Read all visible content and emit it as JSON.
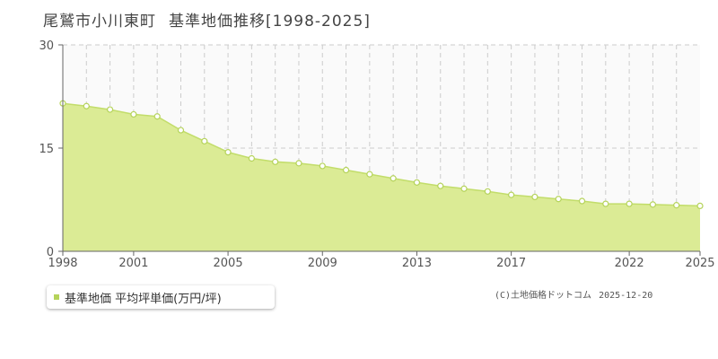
{
  "title": {
    "place": "尾鷲市小川東町",
    "label": "基準地価推移[1998-2025]"
  },
  "legend": {
    "label": "基準地価 平均坪単価(万円/坪)"
  },
  "credit": {
    "source": "(C)土地価格ドットコム",
    "date": "2025-12-20"
  },
  "colors": {
    "area_fill": "#dbeb95",
    "line": "#c2dd6a",
    "marker_fill": "#ffffff",
    "marker_stroke": "#b5d35a",
    "grid": "#cccccc",
    "axis": "#666666",
    "plot_bg": "#fafafa",
    "legend_swatch": "#b5d35a"
  },
  "chart_data": {
    "type": "area",
    "title": "基準地価推移[1998-2025]",
    "x": [
      1998,
      1999,
      2000,
      2001,
      2002,
      2003,
      2004,
      2005,
      2006,
      2007,
      2008,
      2009,
      2010,
      2011,
      2012,
      2013,
      2014,
      2015,
      2016,
      2017,
      2018,
      2019,
      2020,
      2021,
      2022,
      2023,
      2024,
      2025
    ],
    "series": [
      {
        "name": "基準地価 平均坪単価(万円/坪)",
        "values": [
          21.5,
          21.1,
          20.6,
          19.9,
          19.6,
          17.6,
          16.0,
          14.4,
          13.5,
          13.0,
          12.8,
          12.4,
          11.8,
          11.2,
          10.6,
          10.0,
          9.5,
          9.1,
          8.7,
          8.2,
          7.9,
          7.6,
          7.3,
          6.9,
          6.9,
          6.8,
          6.7,
          6.6
        ]
      }
    ],
    "xticks": [
      "1998",
      "2001",
      "2005",
      "2009",
      "2013",
      "2017",
      "2022",
      "2025"
    ],
    "yticks": [
      "0",
      "15",
      "30"
    ],
    "xlim": [
      1998,
      2025
    ],
    "ylim": [
      0,
      30
    ],
    "grid": true,
    "legend_position": "bottom-left"
  }
}
